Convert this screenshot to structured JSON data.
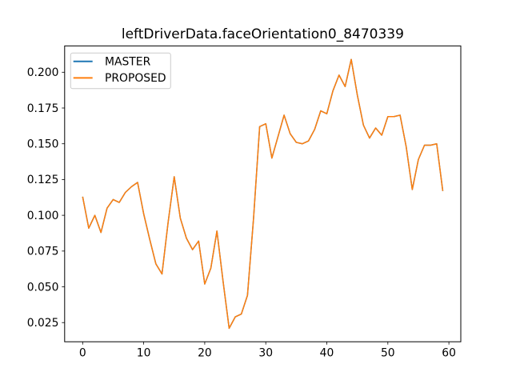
{
  "figure": {
    "background": "#ffffff",
    "spine_color": "#000000",
    "text_color": "#000000"
  },
  "chart_data": {
    "type": "line",
    "title": "leftDriverData.faceOrientation0_8470339",
    "xlabel": "",
    "ylabel": "",
    "grid": false,
    "xlim": [
      -2.95,
      61.95
    ],
    "ylim": [
      0.0116,
      0.2184
    ],
    "xticks": {
      "values": [
        0,
        10,
        20,
        30,
        40,
        50,
        60
      ],
      "labels": [
        "0",
        "10",
        "20",
        "30",
        "40",
        "50",
        "60"
      ]
    },
    "yticks": {
      "values": [
        0.025,
        0.05,
        0.075,
        0.1,
        0.125,
        0.15,
        0.175,
        0.2
      ],
      "labels": [
        "0.025",
        "0.050",
        "0.075",
        "0.100",
        "0.125",
        "0.150",
        "0.175",
        "0.200"
      ]
    },
    "legend": {
      "position": "upper left",
      "border_color": "#cccccc",
      "background": "#ffffff"
    },
    "x": [
      0,
      1,
      2,
      3,
      4,
      5,
      6,
      7,
      8,
      9,
      10,
      11,
      12,
      13,
      14,
      15,
      16,
      17,
      18,
      19,
      20,
      21,
      22,
      23,
      24,
      25,
      26,
      27,
      28,
      29,
      30,
      31,
      32,
      33,
      34,
      35,
      36,
      37,
      38,
      39,
      40,
      41,
      42,
      43,
      44,
      45,
      46,
      47,
      48,
      49,
      50,
      51,
      52,
      53,
      54,
      55,
      56,
      57,
      58,
      59
    ],
    "series": [
      {
        "name": "MASTER",
        "color": "#1f77b4",
        "values": [
          0.113,
          0.091,
          0.1,
          0.088,
          0.105,
          0.111,
          0.109,
          0.116,
          0.12,
          0.123,
          0.101,
          0.083,
          0.066,
          0.059,
          0.095,
          0.127,
          0.098,
          0.084,
          0.076,
          0.082,
          0.052,
          0.063,
          0.089,
          0.054,
          0.021,
          0.029,
          0.031,
          0.044,
          0.098,
          0.162,
          0.164,
          0.14,
          0.155,
          0.17,
          0.157,
          0.151,
          0.15,
          0.152,
          0.16,
          0.173,
          0.171,
          0.187,
          0.198,
          0.19,
          0.209,
          0.184,
          0.163,
          0.154,
          0.161,
          0.156,
          0.169,
          0.169,
          0.17,
          0.148,
          0.118,
          0.139,
          0.149,
          0.149,
          0.15,
          0.117
        ]
      },
      {
        "name": "PROPOSED",
        "color": "#ff7f0e",
        "values": [
          0.113,
          0.091,
          0.1,
          0.088,
          0.105,
          0.111,
          0.109,
          0.116,
          0.12,
          0.123,
          0.101,
          0.083,
          0.066,
          0.059,
          0.095,
          0.127,
          0.098,
          0.084,
          0.076,
          0.082,
          0.052,
          0.063,
          0.089,
          0.054,
          0.021,
          0.029,
          0.031,
          0.044,
          0.098,
          0.162,
          0.164,
          0.14,
          0.155,
          0.17,
          0.157,
          0.151,
          0.15,
          0.152,
          0.16,
          0.173,
          0.171,
          0.187,
          0.198,
          0.19,
          0.209,
          0.184,
          0.163,
          0.154,
          0.161,
          0.156,
          0.169,
          0.169,
          0.17,
          0.148,
          0.118,
          0.139,
          0.149,
          0.149,
          0.15,
          0.117
        ]
      }
    ]
  }
}
